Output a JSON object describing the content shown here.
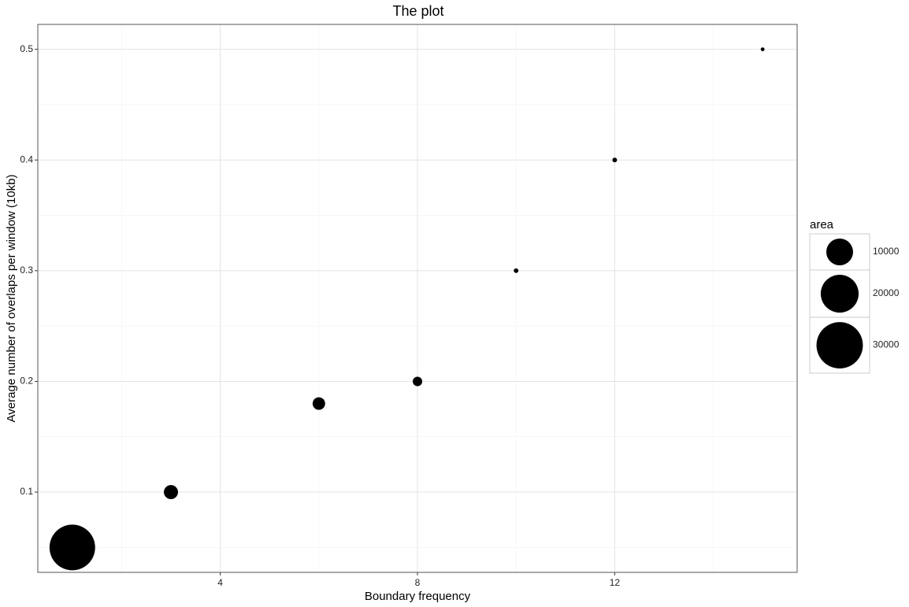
{
  "chart_data": {
    "type": "scatter",
    "title": "The plot",
    "x_label": "Boundary frequency",
    "y_label": "Average number of overlaps per window (10kb)",
    "x": [
      1,
      3,
      6,
      8,
      10,
      12,
      15
    ],
    "series": [
      {
        "name": "area",
        "color": "#000000",
        "values": [
          0.05,
          0.1,
          0.18,
          0.2,
          0.3,
          0.4,
          0.5
        ],
        "sizes": [
          29000,
          2800,
          2200,
          1250,
          300,
          300,
          200
        ]
      }
    ],
    "xlim": [
      0.3,
      15.7
    ],
    "ylim": [
      0.0275,
      0.5225
    ],
    "xticks": [
      4,
      8,
      12
    ],
    "yticks": [
      0.1,
      0.2,
      0.3,
      0.4,
      0.5
    ],
    "x_minor_grid": [
      2,
      6,
      10,
      14
    ],
    "y_minor_grid": [
      0.05,
      0.15,
      0.25,
      0.35,
      0.45
    ],
    "grid": true,
    "size_legend": {
      "title": "area",
      "values": [
        10000,
        20000,
        30000
      ]
    },
    "legend_position": "right"
  }
}
